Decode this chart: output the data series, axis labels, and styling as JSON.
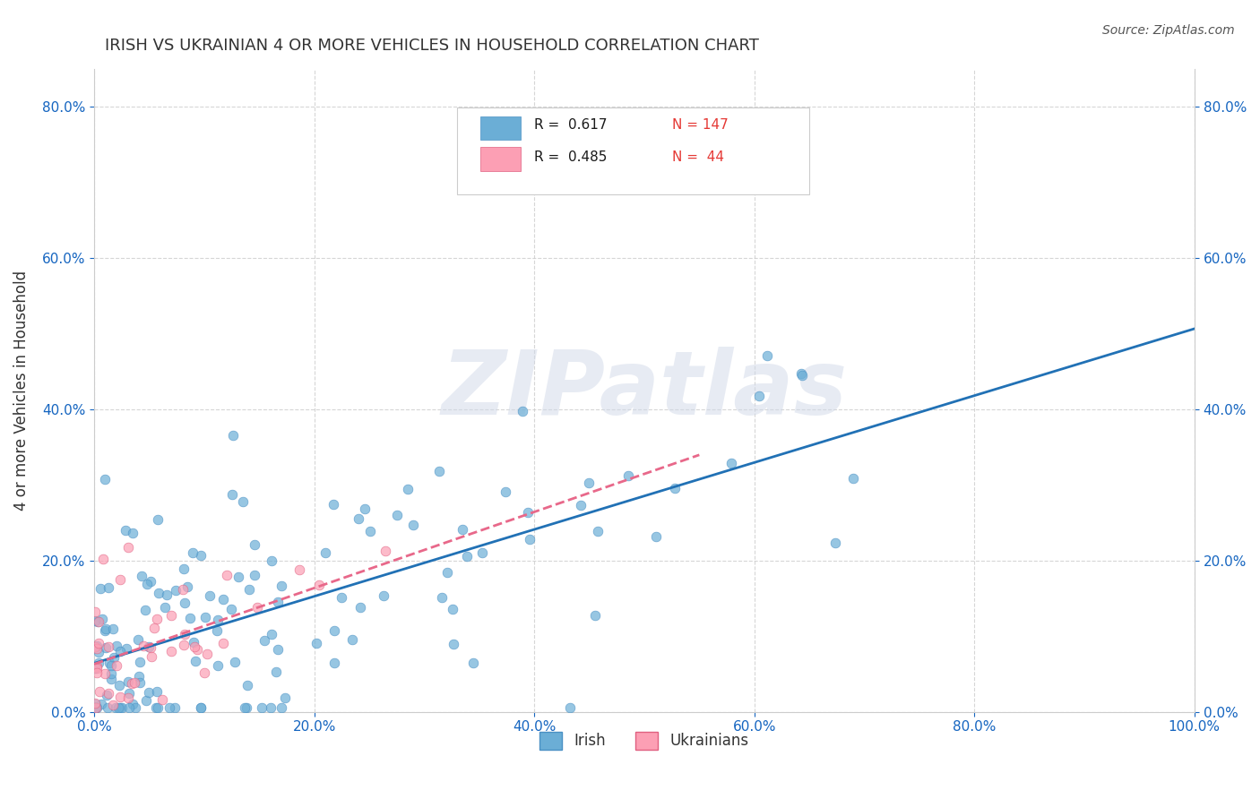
{
  "title": "IRISH VS UKRAINIAN 4 OR MORE VEHICLES IN HOUSEHOLD CORRELATION CHART",
  "source": "Source: ZipAtlas.com",
  "ylabel": "4 or more Vehicles in Household",
  "xlabel": "",
  "watermark": "ZIPatlas",
  "irish_R": 0.617,
  "irish_N": 147,
  "ukrainian_R": 0.485,
  "ukrainian_N": 44,
  "irish_color": "#6baed6",
  "ukrainian_color": "#fc9fb4",
  "irish_line_color": "#2171b5",
  "ukrainian_line_color": "#e8688a",
  "background_color": "#ffffff",
  "grid_color": "#cccccc",
  "title_color": "#333333",
  "axis_label_color": "#1565c0",
  "legend_R_color": "#1565c0",
  "legend_N_color": "#e53935",
  "xlim": [
    0.0,
    1.0
  ],
  "ylim": [
    0.0,
    0.85
  ],
  "x_ticks": [
    0.0,
    0.2,
    0.4,
    0.6,
    0.8,
    1.0
  ],
  "y_ticks": [
    0.0,
    0.2,
    0.4,
    0.6,
    0.8
  ],
  "figsize": [
    14.06,
    8.92
  ],
  "dpi": 100
}
